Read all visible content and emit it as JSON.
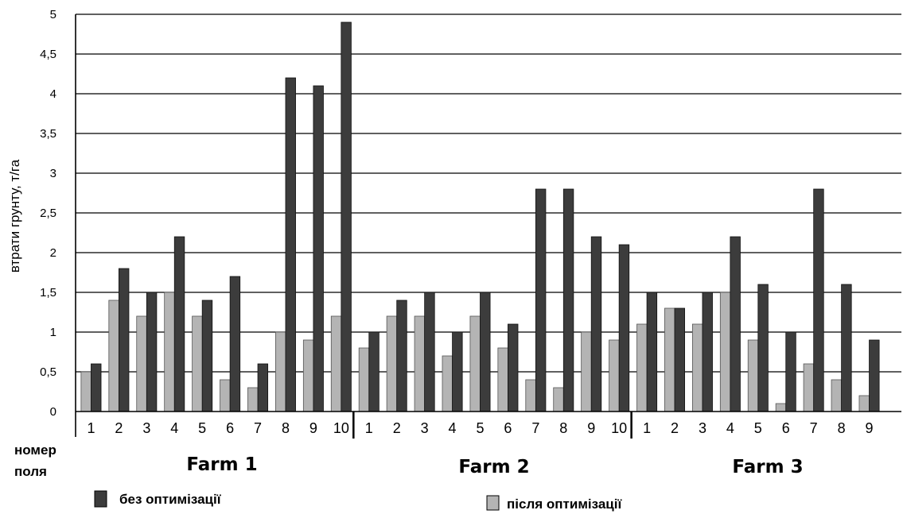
{
  "chart_data": {
    "type": "bar",
    "ylabel": "втрати грунту, т/га",
    "xlabel_lines": [
      "номер",
      "поля"
    ],
    "ylim": [
      0,
      5
    ],
    "yticks": [
      "0",
      "0,5",
      "1",
      "1,5",
      "2",
      "2,5",
      "3",
      "3,5",
      "4",
      "4,5",
      "5"
    ],
    "grid": true,
    "legend_position": "bottom",
    "colors": {
      "before": "#3c3c3c",
      "after": "#b4b4b4"
    },
    "groups": [
      {
        "name": "Farm 1",
        "categories": [
          "1",
          "2",
          "3",
          "4",
          "5",
          "6",
          "7",
          "8",
          "9",
          "10"
        ]
      },
      {
        "name": "Farm 2",
        "categories": [
          "1",
          "2",
          "3",
          "4",
          "5",
          "6",
          "7",
          "8",
          "9",
          "10"
        ]
      },
      {
        "name": "Farm 3",
        "categories": [
          "1",
          "2",
          "3",
          "4",
          "5",
          "6",
          "7",
          "8",
          "9"
        ]
      }
    ],
    "series": [
      {
        "name": "після оптимізації",
        "key": "after",
        "values": [
          0.5,
          1.4,
          1.2,
          1.5,
          1.2,
          0.4,
          0.3,
          1.0,
          0.9,
          1.2,
          0.8,
          1.2,
          1.2,
          0.7,
          1.2,
          0.8,
          0.4,
          0.3,
          1.0,
          0.9,
          1.1,
          1.3,
          1.1,
          1.5,
          0.9,
          0.1,
          0.6,
          0.4,
          0.2
        ]
      },
      {
        "name": "без оптимізації",
        "key": "before",
        "values": [
          0.6,
          1.8,
          1.5,
          2.2,
          1.4,
          1.7,
          0.6,
          4.2,
          4.1,
          4.9,
          1.0,
          1.4,
          1.5,
          1.0,
          1.5,
          1.1,
          2.8,
          2.8,
          2.2,
          2.1,
          1.5,
          1.3,
          1.5,
          2.2,
          1.6,
          1.0,
          2.8,
          1.6,
          0.9
        ]
      }
    ]
  }
}
